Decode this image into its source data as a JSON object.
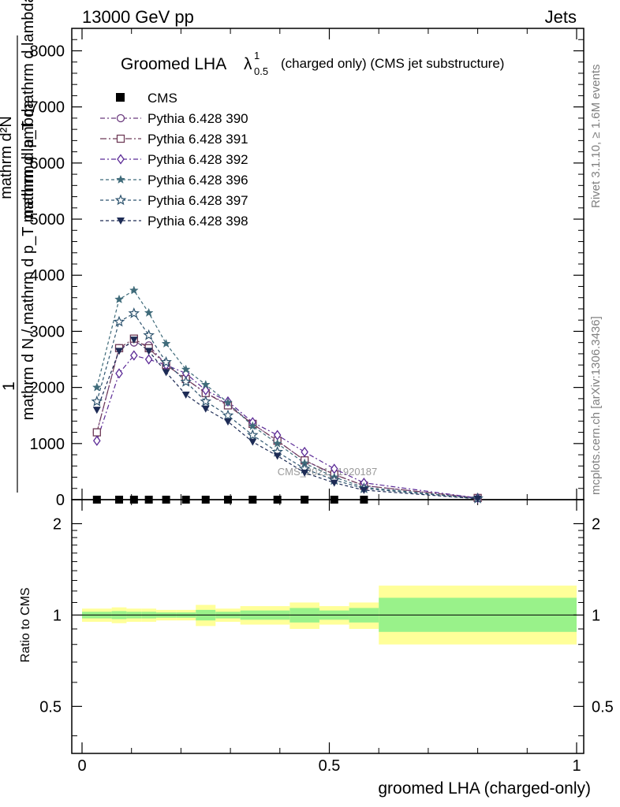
{
  "header": {
    "energy_label": "13000 GeV pp",
    "category_label": "Jets"
  },
  "title": {
    "main": "Groomed LHA",
    "lambda_symbol": "λ",
    "sup": "1",
    "sub": "0.5",
    "note": "(charged only) (CMS jet substructure)"
  },
  "side_labels": {
    "rivet": "Rivet 3.1.10, ≥ 1.6M events",
    "mcplots": "mcplots.cern.ch [arXiv:1306.3436]"
  },
  "watermark": "CMS_2021_I1920187",
  "y_axis_main": {
    "numerator_label": "1",
    "denominator_label": "mathrm d N / mathrm d p_T mathrm d lambda",
    "numerator_text": "mathrm d²N",
    "denominator_text": "mathrm d p_T mathrm d lambda"
  },
  "y_axis_ratio": {
    "label": "Ratio to CMS"
  },
  "x_axis": {
    "label": "groomed LHA (charged-only)"
  },
  "colors": {
    "p390": "#6b3a7e",
    "p391": "#6e3b57",
    "p392": "#5b2a96",
    "p396": "#3f6b7a",
    "p397": "#2f5570",
    "p398": "#1d2b55",
    "band_outer": "#ffff99",
    "band_inner": "#99f28a"
  },
  "chart_data": {
    "type": "line",
    "xlim": [
      0,
      1
    ],
    "x_ticks": [
      "0",
      "0.5",
      "1"
    ],
    "main_ylim": [
      0,
      8400
    ],
    "main_y_ticks": [
      "0",
      "1000",
      "2000",
      "3000",
      "4000",
      "5000",
      "6000",
      "7000",
      "8000"
    ],
    "main_y_tick_display": [
      "0",
      "1000",
      "2000",
      "3000",
      "4000",
      "5000",
      "6000",
      "7000",
      "8000"
    ],
    "ratio_ylim": [
      0.35,
      2.4
    ],
    "ratio_y_ticks": [
      "0.5",
      "1",
      "2"
    ],
    "ratio_log": true,
    "x": [
      0.03,
      0.075,
      0.105,
      0.135,
      0.17,
      0.21,
      0.25,
      0.295,
      0.345,
      0.395,
      0.45,
      0.51,
      0.57,
      0.8
    ],
    "cms": [
      0,
      0,
      0,
      0,
      0,
      0,
      0,
      0,
      0,
      0,
      0,
      0,
      0
    ],
    "cms_x": [
      0.03,
      0.075,
      0.105,
      0.135,
      0.17,
      0.21,
      0.25,
      0.295,
      0.345,
      0.395,
      0.45,
      0.51,
      0.57
    ],
    "series": [
      {
        "name": "Pythia 6.428 390",
        "marker": "circle-open",
        "dash": "6,3,2,3",
        "color_key": "p390",
        "values": [
          1200,
          2700,
          2800,
          2750,
          2400,
          2150,
          1900,
          1700,
          1350,
          1050,
          700,
          450,
          250,
          30
        ]
      },
      {
        "name": "Pythia 6.428 391",
        "marker": "square-open",
        "dash": "8,3,2,3",
        "color_key": "p391",
        "values": [
          1200,
          2700,
          2870,
          2700,
          2400,
          2150,
          1900,
          1680,
          1350,
          1050,
          700,
          450,
          250,
          30
        ]
      },
      {
        "name": "Pythia 6.428 392",
        "marker": "diamond-open",
        "dash": "6,3,2,3",
        "color_key": "p392",
        "values": [
          1050,
          2250,
          2570,
          2500,
          2400,
          2250,
          1950,
          1750,
          1380,
          1150,
          850,
          550,
          300,
          30
        ]
      },
      {
        "name": "Pythia 6.428 396",
        "marker": "star-filled",
        "dash": "4,3",
        "color_key": "p396",
        "values": [
          2000,
          3570,
          3730,
          3330,
          2780,
          2320,
          2050,
          1730,
          1310,
          1000,
          650,
          400,
          220,
          20
        ]
      },
      {
        "name": "Pythia 6.428 397",
        "marker": "star-open",
        "dash": "4,3",
        "color_key": "p397",
        "values": [
          1750,
          3170,
          3320,
          2930,
          2450,
          2100,
          1750,
          1500,
          1150,
          850,
          550,
          350,
          200,
          20
        ]
      },
      {
        "name": "Pythia 6.428 398",
        "marker": "triangle-down-filled",
        "dash": "4,3",
        "color_key": "p398",
        "values": [
          1600,
          2650,
          2850,
          2650,
          2270,
          1870,
          1620,
          1390,
          1030,
          780,
          480,
          300,
          170,
          15
        ]
      }
    ],
    "ratio_bands": [
      {
        "x0": 0.0,
        "x1": 0.06,
        "outer": [
          0.95,
          1.05
        ],
        "inner": [
          0.975,
          1.025
        ]
      },
      {
        "x0": 0.06,
        "x1": 0.09,
        "outer": [
          0.94,
          1.06
        ],
        "inner": [
          0.97,
          1.03
        ]
      },
      {
        "x0": 0.09,
        "x1": 0.12,
        "outer": [
          0.95,
          1.05
        ],
        "inner": [
          0.975,
          1.025
        ]
      },
      {
        "x0": 0.12,
        "x1": 0.15,
        "outer": [
          0.95,
          1.05
        ],
        "inner": [
          0.975,
          1.025
        ]
      },
      {
        "x0": 0.15,
        "x1": 0.19,
        "outer": [
          0.96,
          1.04
        ],
        "inner": [
          0.98,
          1.02
        ]
      },
      {
        "x0": 0.19,
        "x1": 0.23,
        "outer": [
          0.96,
          1.04
        ],
        "inner": [
          0.98,
          1.02
        ]
      },
      {
        "x0": 0.23,
        "x1": 0.27,
        "outer": [
          0.92,
          1.08
        ],
        "inner": [
          0.96,
          1.04
        ]
      },
      {
        "x0": 0.27,
        "x1": 0.32,
        "outer": [
          0.95,
          1.05
        ],
        "inner": [
          0.975,
          1.025
        ]
      },
      {
        "x0": 0.32,
        "x1": 0.37,
        "outer": [
          0.93,
          1.07
        ],
        "inner": [
          0.965,
          1.035
        ]
      },
      {
        "x0": 0.37,
        "x1": 0.42,
        "outer": [
          0.93,
          1.07
        ],
        "inner": [
          0.965,
          1.035
        ]
      },
      {
        "x0": 0.42,
        "x1": 0.48,
        "outer": [
          0.9,
          1.1
        ],
        "inner": [
          0.945,
          1.055
        ]
      },
      {
        "x0": 0.48,
        "x1": 0.54,
        "outer": [
          0.93,
          1.07
        ],
        "inner": [
          0.965,
          1.035
        ]
      },
      {
        "x0": 0.54,
        "x1": 0.6,
        "outer": [
          0.9,
          1.1
        ],
        "inner": [
          0.945,
          1.055
        ]
      },
      {
        "x0": 0.6,
        "x1": 1.0,
        "outer": [
          0.8,
          1.25
        ],
        "inner": [
          0.88,
          1.14
        ]
      }
    ]
  }
}
